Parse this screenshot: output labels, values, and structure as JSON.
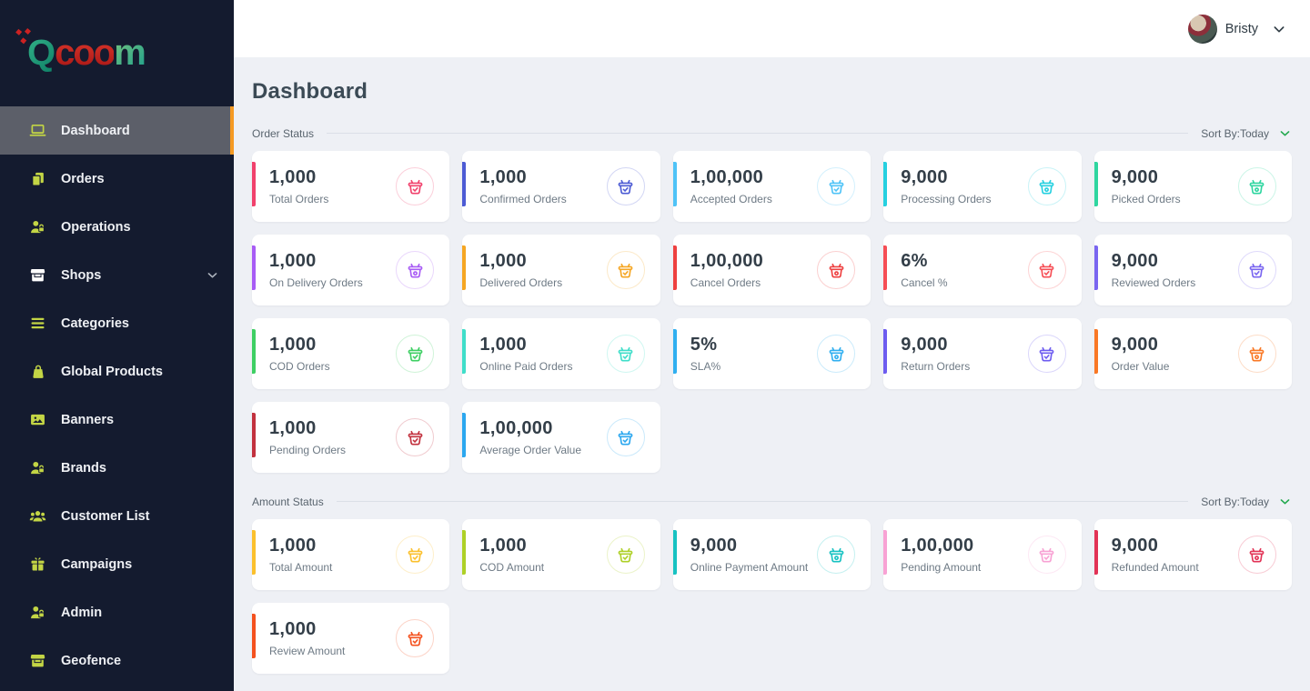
{
  "app": {
    "logo": {
      "q": "Q",
      "coo": "coo",
      "m": "m"
    }
  },
  "topbar": {
    "user_name": "Bristy"
  },
  "page": {
    "title": "Dashboard"
  },
  "colors": {
    "sidebar_bg": "#141b2f",
    "sidebar_icon": "#c3d545",
    "active_item_bg": "#5c5f69",
    "active_item_border": "#f59a23",
    "sort_chevron": "#21a84d"
  },
  "sidebar": {
    "items": [
      {
        "label": "Dashboard",
        "icon": "laptop-icon",
        "active": true
      },
      {
        "label": "Orders",
        "icon": "documents-icon"
      },
      {
        "label": "Operations",
        "icon": "user-lock-icon"
      },
      {
        "label": "Shops",
        "icon": "storefront-icon",
        "chevron": true,
        "icon_color": "#ffffff"
      },
      {
        "label": "Categories",
        "icon": "menu-lines-icon"
      },
      {
        "label": "Global Products",
        "icon": "bag-icon"
      },
      {
        "label": "Banners",
        "icon": "image-icon"
      },
      {
        "label": "Brands",
        "icon": "user-lock-icon"
      },
      {
        "label": "Customer List",
        "icon": "users-icon"
      },
      {
        "label": "Campaigns",
        "icon": "gift-icon"
      },
      {
        "label": "Admin",
        "icon": "user-lock-icon"
      },
      {
        "label": "Geofence",
        "icon": "storefront-icon"
      }
    ]
  },
  "sections": [
    {
      "label": "Order Status",
      "sort_label": "Sort By:Today",
      "cards": [
        {
          "value": "1,000",
          "label": "Total Orders",
          "accent": "#f1416c",
          "icon": "basket-check-icon"
        },
        {
          "value": "1,000",
          "label": "Confirmed Orders",
          "accent": "#4c5bd4",
          "icon": "basket-check-icon"
        },
        {
          "value": "1,00,000",
          "label": "Accepted Orders",
          "accent": "#4fc3f7",
          "icon": "basket-check-icon"
        },
        {
          "value": "9,000",
          "label": "Processing Orders",
          "accent": "#26d0e0",
          "icon": "basket-dot-icon"
        },
        {
          "value": "9,000",
          "label": "Picked Orders",
          "accent": "#2fd6a0",
          "icon": "basket-dot-icon"
        },
        {
          "value": "1,000",
          "label": "On Delivery Orders",
          "accent": "#a85cf5",
          "icon": "basket-dot-icon"
        },
        {
          "value": "1,000",
          "label": "Delivered Orders",
          "accent": "#f5a623",
          "icon": "basket-check-icon"
        },
        {
          "value": "1,00,000",
          "label": "Cancel Orders",
          "accent": "#ee4040",
          "icon": "basket-dot-icon"
        },
        {
          "value": "6%",
          "label": "Cancel %",
          "accent": "#f64e55",
          "icon": "basket-check-icon"
        },
        {
          "value": "9,000",
          "label": "Reviewed Orders",
          "accent": "#7a66f0",
          "icon": "basket-check-icon"
        },
        {
          "value": "1,000",
          "label": "COD Orders",
          "accent": "#3ecf63",
          "icon": "basket-check-icon"
        },
        {
          "value": "1,000",
          "label": "Online Paid Orders",
          "accent": "#3fdec9",
          "icon": "basket-check-icon"
        },
        {
          "value": "5%",
          "label": "SLA%",
          "accent": "#30aff0",
          "icon": "basket-dot-icon"
        },
        {
          "value": "9,000",
          "label": "Return Orders",
          "accent": "#6d5cf0",
          "icon": "basket-check-icon"
        },
        {
          "value": "9,000",
          "label": "Order Value",
          "accent": "#f97825",
          "icon": "basket-dot-icon"
        },
        {
          "value": "1,000",
          "label": "Pending Orders",
          "accent": "#c2313e",
          "icon": "basket-check-icon"
        },
        {
          "value": "1,00,000",
          "label": "Average Order Value",
          "accent": "#2ba7ef",
          "icon": "basket-check-icon"
        }
      ]
    },
    {
      "label": "Amount Status",
      "sort_label": "Sort By:Today",
      "cards": [
        {
          "value": "1,000",
          "label": "Total Amount",
          "accent": "#fbc02d",
          "icon": "basket-check-icon"
        },
        {
          "value": "1,000",
          "label": "COD Amount",
          "accent": "#aed027",
          "icon": "basket-check-icon"
        },
        {
          "value": "9,000",
          "label": "Online Payment Amount",
          "accent": "#17c2c2",
          "icon": "basket-dot-icon"
        },
        {
          "value": "1,00,000",
          "label": "Pending Amount",
          "accent": "#f8a2d4",
          "icon": "basket-check-icon"
        },
        {
          "value": "9,000",
          "label": "Refunded Amount",
          "accent": "#e23356",
          "icon": "basket-dot-icon"
        },
        {
          "value": "1,000",
          "label": "Review Amount",
          "accent": "#f4511e",
          "icon": "basket-check-icon"
        }
      ]
    }
  ]
}
